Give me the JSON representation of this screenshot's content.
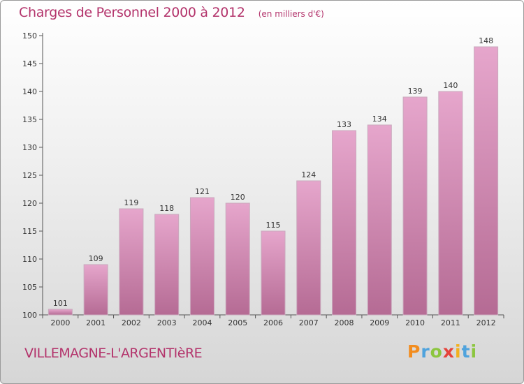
{
  "chart_data": {
    "type": "bar",
    "title": "Charges de Personnel 2000 à 2012",
    "subtitle": "(en milliers d'€)",
    "categories": [
      "2000",
      "2001",
      "2002",
      "2003",
      "2004",
      "2005",
      "2006",
      "2007",
      "2008",
      "2009",
      "2010",
      "2011",
      "2012"
    ],
    "values": [
      101,
      109,
      119,
      118,
      121,
      120,
      115,
      124,
      133,
      134,
      139,
      140,
      148
    ],
    "ylim": [
      100,
      150
    ],
    "yticks": [
      100,
      105,
      110,
      115,
      120,
      125,
      130,
      135,
      140,
      145,
      150
    ],
    "xlabel": "",
    "ylabel": "",
    "grid": false,
    "bar_color": "#d98fb8",
    "bar_edge_color": "#c9a9bd",
    "axis_color": "#555555"
  },
  "footer": {
    "commune": "VILLEMAGNE-L'ARGENTIèRE"
  },
  "logo": {
    "text": "Proxiti",
    "letters": [
      {
        "char": "P",
        "color": "#f28c1e"
      },
      {
        "char": "r",
        "color": "#4fa3dd"
      },
      {
        "char": "o",
        "color": "#8cc63f"
      },
      {
        "char": "x",
        "color": "#e5433b"
      },
      {
        "char": "i",
        "color": "#f2b01e"
      },
      {
        "char": "t",
        "color": "#4fa3dd"
      },
      {
        "char": "i",
        "color": "#8cc63f"
      }
    ]
  }
}
